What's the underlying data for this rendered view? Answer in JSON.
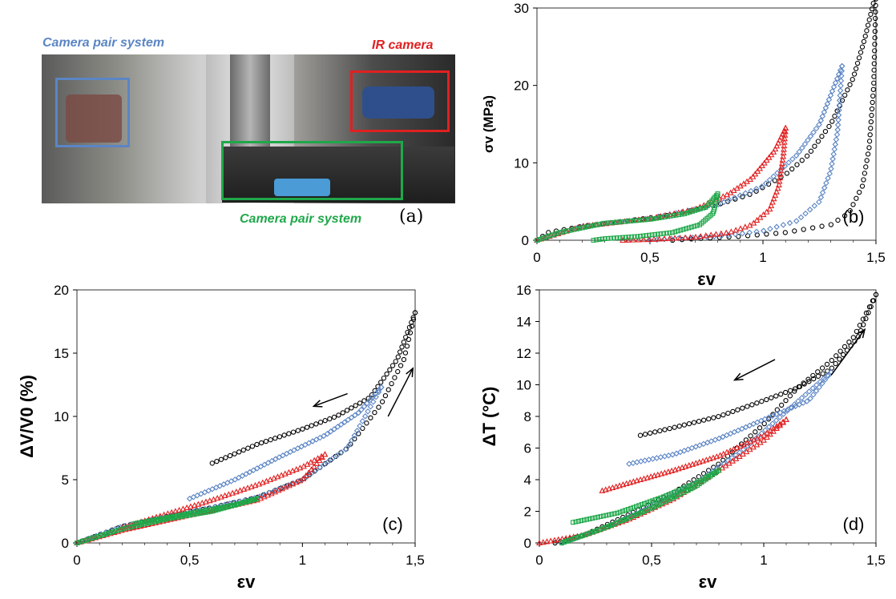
{
  "panel_a": {
    "label_blue": "Camera pair system",
    "label_red": "IR camera",
    "label_green": "Camera pair system",
    "letter": "(a)",
    "colors": {
      "blue": "#5b85c4",
      "red": "#e02020",
      "green": "#1fa84a"
    }
  },
  "chart_data": [
    {
      "id": "b",
      "type": "scatter",
      "letter": "(b)",
      "xlabel": "εv",
      "ylabel": "σv (MPa)",
      "xlim": [
        0,
        1.5
      ],
      "ylim": [
        0,
        30
      ],
      "xticks": [
        "0",
        "0,5",
        "1",
        "1,5"
      ],
      "yticks": [
        "0",
        "10",
        "20",
        "30"
      ],
      "series": [
        {
          "color": "#000000",
          "marker": "circle",
          "loading": [
            [
              0,
              0
            ],
            [
              0.05,
              1.0
            ],
            [
              0.2,
              1.8
            ],
            [
              0.4,
              2.5
            ],
            [
              0.6,
              3.3
            ],
            [
              0.8,
              4.6
            ],
            [
              0.95,
              6.0
            ],
            [
              1.1,
              8.5
            ],
            [
              1.2,
              11.0
            ],
            [
              1.3,
              15.0
            ],
            [
              1.4,
              21.0
            ],
            [
              1.45,
              26.0
            ],
            [
              1.5,
              32.0
            ]
          ],
          "unloading": [
            [
              1.5,
              32.0
            ],
            [
              1.49,
              20.0
            ],
            [
              1.47,
              12.0
            ],
            [
              1.44,
              7.0
            ],
            [
              1.38,
              3.5
            ],
            [
              1.3,
              2.0
            ],
            [
              1.1,
              1.0
            ],
            [
              0.9,
              0.5
            ],
            [
              0.7,
              0.2
            ],
            [
              0.6,
              0
            ]
          ]
        },
        {
          "color": "#5b85c4",
          "marker": "diamond",
          "loading": [
            [
              0,
              0
            ],
            [
              0.2,
              1.8
            ],
            [
              0.5,
              2.8
            ],
            [
              0.8,
              4.6
            ],
            [
              1.0,
              7.0
            ],
            [
              1.15,
              11.0
            ],
            [
              1.25,
              15.0
            ],
            [
              1.35,
              22.5
            ]
          ],
          "unloading": [
            [
              1.35,
              22.5
            ],
            [
              1.33,
              14.0
            ],
            [
              1.3,
              9.0
            ],
            [
              1.25,
              5.0
            ],
            [
              1.15,
              2.5
            ],
            [
              1.0,
              1.2
            ],
            [
              0.8,
              0.5
            ],
            [
              0.6,
              0.2
            ],
            [
              0.5,
              0
            ]
          ]
        },
        {
          "color": "#e02020",
          "marker": "triangle",
          "loading": [
            [
              0,
              0
            ],
            [
              0.2,
              1.8
            ],
            [
              0.5,
              2.8
            ],
            [
              0.7,
              4.0
            ],
            [
              0.85,
              6.0
            ],
            [
              0.95,
              8.0
            ],
            [
              1.05,
              11.5
            ],
            [
              1.1,
              14.5
            ]
          ],
          "unloading": [
            [
              1.1,
              14.5
            ],
            [
              1.09,
              11.0
            ],
            [
              1.07,
              7.0
            ],
            [
              1.03,
              4.0
            ],
            [
              0.95,
              2.0
            ],
            [
              0.85,
              1.0
            ],
            [
              0.7,
              0.4
            ],
            [
              0.5,
              0.1
            ],
            [
              0.38,
              0
            ]
          ]
        },
        {
          "color": "#1fa84a",
          "marker": "square",
          "loading": [
            [
              0,
              0
            ],
            [
              0.1,
              1.0
            ],
            [
              0.3,
              2.2
            ],
            [
              0.5,
              2.7
            ],
            [
              0.65,
              3.4
            ],
            [
              0.75,
              4.3
            ],
            [
              0.8,
              6.0
            ]
          ],
          "unloading": [
            [
              0.8,
              6.0
            ],
            [
              0.78,
              3.5
            ],
            [
              0.72,
              2.0
            ],
            [
              0.6,
              1.0
            ],
            [
              0.45,
              0.5
            ],
            [
              0.3,
              0.2
            ],
            [
              0.25,
              0
            ]
          ]
        }
      ]
    },
    {
      "id": "c",
      "type": "scatter",
      "letter": "(c)",
      "xlabel": "εv",
      "ylabel": "ΔV/V0 (%)",
      "xlim": [
        0,
        1.5
      ],
      "ylim": [
        0,
        20
      ],
      "xticks": [
        "0",
        "0,5",
        "1",
        "1,5"
      ],
      "yticks": [
        "0",
        "5",
        "10",
        "15",
        "20"
      ],
      "arrows": [
        {
          "from": [
            1.2,
            11.8
          ],
          "to": [
            1.05,
            10.8
          ]
        },
        {
          "from": [
            1.38,
            10.0
          ],
          "to": [
            1.49,
            13.8
          ]
        }
      ],
      "series": [
        {
          "color": "#000000",
          "marker": "circle",
          "loading": [
            [
              0,
              0
            ],
            [
              0.2,
              1.3
            ],
            [
              0.4,
              2.1
            ],
            [
              0.6,
              2.8
            ],
            [
              0.8,
              3.6
            ],
            [
              1.0,
              5.0
            ],
            [
              1.2,
              7.5
            ],
            [
              1.35,
              11.0
            ],
            [
              1.45,
              14.5
            ],
            [
              1.5,
              18.2
            ]
          ],
          "unloading": [
            [
              1.5,
              18.2
            ],
            [
              1.42,
              14.5
            ],
            [
              1.3,
              11.5
            ],
            [
              1.15,
              10.0
            ],
            [
              1.0,
              9.0
            ],
            [
              0.8,
              7.8
            ],
            [
              0.6,
              6.3
            ]
          ]
        },
        {
          "color": "#5b85c4",
          "marker": "diamond",
          "loading": [
            [
              0,
              0
            ],
            [
              0.2,
              1.3
            ],
            [
              0.4,
              2.1
            ],
            [
              0.6,
              2.8
            ],
            [
              0.8,
              3.6
            ],
            [
              1.0,
              5.0
            ],
            [
              1.2,
              7.5
            ],
            [
              1.35,
              12.3
            ]
          ],
          "unloading": [
            [
              1.35,
              12.3
            ],
            [
              1.25,
              10.3
            ],
            [
              1.1,
              8.5
            ],
            [
              0.9,
              6.8
            ],
            [
              0.7,
              5.0
            ],
            [
              0.5,
              3.5
            ]
          ]
        },
        {
          "color": "#e02020",
          "marker": "triangle",
          "loading": [
            [
              0,
              0
            ],
            [
              0.2,
              1.0
            ],
            [
              0.4,
              1.8
            ],
            [
              0.6,
              2.6
            ],
            [
              0.8,
              3.4
            ],
            [
              1.0,
              5.0
            ],
            [
              1.1,
              7.0
            ]
          ],
          "unloading": [
            [
              1.1,
              7.0
            ],
            [
              1.0,
              6.0
            ],
            [
              0.8,
              4.6
            ],
            [
              0.6,
              3.4
            ],
            [
              0.4,
              2.3
            ],
            [
              0.2,
              1.2
            ]
          ]
        },
        {
          "color": "#1fa84a",
          "marker": "square",
          "loading": [
            [
              0,
              0
            ],
            [
              0.2,
              1.1
            ],
            [
              0.4,
              1.9
            ],
            [
              0.6,
              2.5
            ],
            [
              0.8,
              3.5
            ]
          ],
          "unloading": [
            [
              0.8,
              3.5
            ],
            [
              0.7,
              3.0
            ],
            [
              0.55,
              2.5
            ],
            [
              0.4,
              2.0
            ],
            [
              0.25,
              1.5
            ]
          ]
        }
      ]
    },
    {
      "id": "d",
      "type": "scatter",
      "letter": "(d)",
      "xlabel": "εv",
      "ylabel": "ΔT (°C)",
      "xlim": [
        0,
        1.5
      ],
      "ylim": [
        0,
        16
      ],
      "xticks": [
        "0",
        "0,5",
        "1",
        "1,5"
      ],
      "yticks": [
        "0",
        "2",
        "4",
        "6",
        "8",
        "10",
        "12",
        "14",
        "16"
      ],
      "arrows": [
        {
          "from": [
            1.05,
            11.6
          ],
          "to": [
            0.87,
            10.3
          ]
        },
        {
          "from": [
            1.3,
            10.6
          ],
          "to": [
            1.45,
            13.5
          ]
        }
      ],
      "series": [
        {
          "color": "#000000",
          "marker": "circle",
          "loading": [
            [
              0.07,
              0
            ],
            [
              0.2,
              0.5
            ],
            [
              0.4,
              1.8
            ],
            [
              0.6,
              3.2
            ],
            [
              0.8,
              5.0
            ],
            [
              1.0,
              7.5
            ],
            [
              1.15,
              9.8
            ],
            [
              1.3,
              11.5
            ],
            [
              1.4,
              13.0
            ],
            [
              1.5,
              15.7
            ]
          ],
          "unloading": [
            [
              1.5,
              15.7
            ],
            [
              1.42,
              13.0
            ],
            [
              1.3,
              11.0
            ],
            [
              1.15,
              9.8
            ],
            [
              1.0,
              9.0
            ],
            [
              0.8,
              8.0
            ],
            [
              0.6,
              7.3
            ],
            [
              0.45,
              6.8
            ]
          ]
        },
        {
          "color": "#5b85c4",
          "marker": "diamond",
          "loading": [
            [
              0.1,
              0
            ],
            [
              0.3,
              1.0
            ],
            [
              0.5,
              2.3
            ],
            [
              0.7,
              3.8
            ],
            [
              0.9,
              5.8
            ],
            [
              1.1,
              8.3
            ],
            [
              1.3,
              10.8
            ]
          ],
          "unloading": [
            [
              1.3,
              10.8
            ],
            [
              1.2,
              9.0
            ],
            [
              1.0,
              7.8
            ],
            [
              0.8,
              6.6
            ],
            [
              0.6,
              5.6
            ],
            [
              0.4,
              5.0
            ]
          ]
        },
        {
          "color": "#e02020",
          "marker": "triangle",
          "loading": [
            [
              0,
              0
            ],
            [
              0.2,
              0.5
            ],
            [
              0.4,
              1.5
            ],
            [
              0.6,
              2.8
            ],
            [
              0.8,
              4.6
            ],
            [
              1.0,
              6.5
            ],
            [
              1.1,
              7.8
            ]
          ],
          "unloading": [
            [
              1.1,
              7.8
            ],
            [
              1.0,
              6.8
            ],
            [
              0.8,
              5.5
            ],
            [
              0.6,
              4.6
            ],
            [
              0.4,
              3.8
            ],
            [
              0.28,
              3.3
            ]
          ]
        },
        {
          "color": "#1fa84a",
          "marker": "square",
          "loading": [
            [
              0.1,
              0
            ],
            [
              0.3,
              1.0
            ],
            [
              0.5,
              2.2
            ],
            [
              0.7,
              3.6
            ],
            [
              0.8,
              4.6
            ]
          ],
          "unloading": [
            [
              0.8,
              4.6
            ],
            [
              0.7,
              3.8
            ],
            [
              0.55,
              2.9
            ],
            [
              0.35,
              1.9
            ],
            [
              0.15,
              1.3
            ]
          ]
        }
      ]
    }
  ]
}
